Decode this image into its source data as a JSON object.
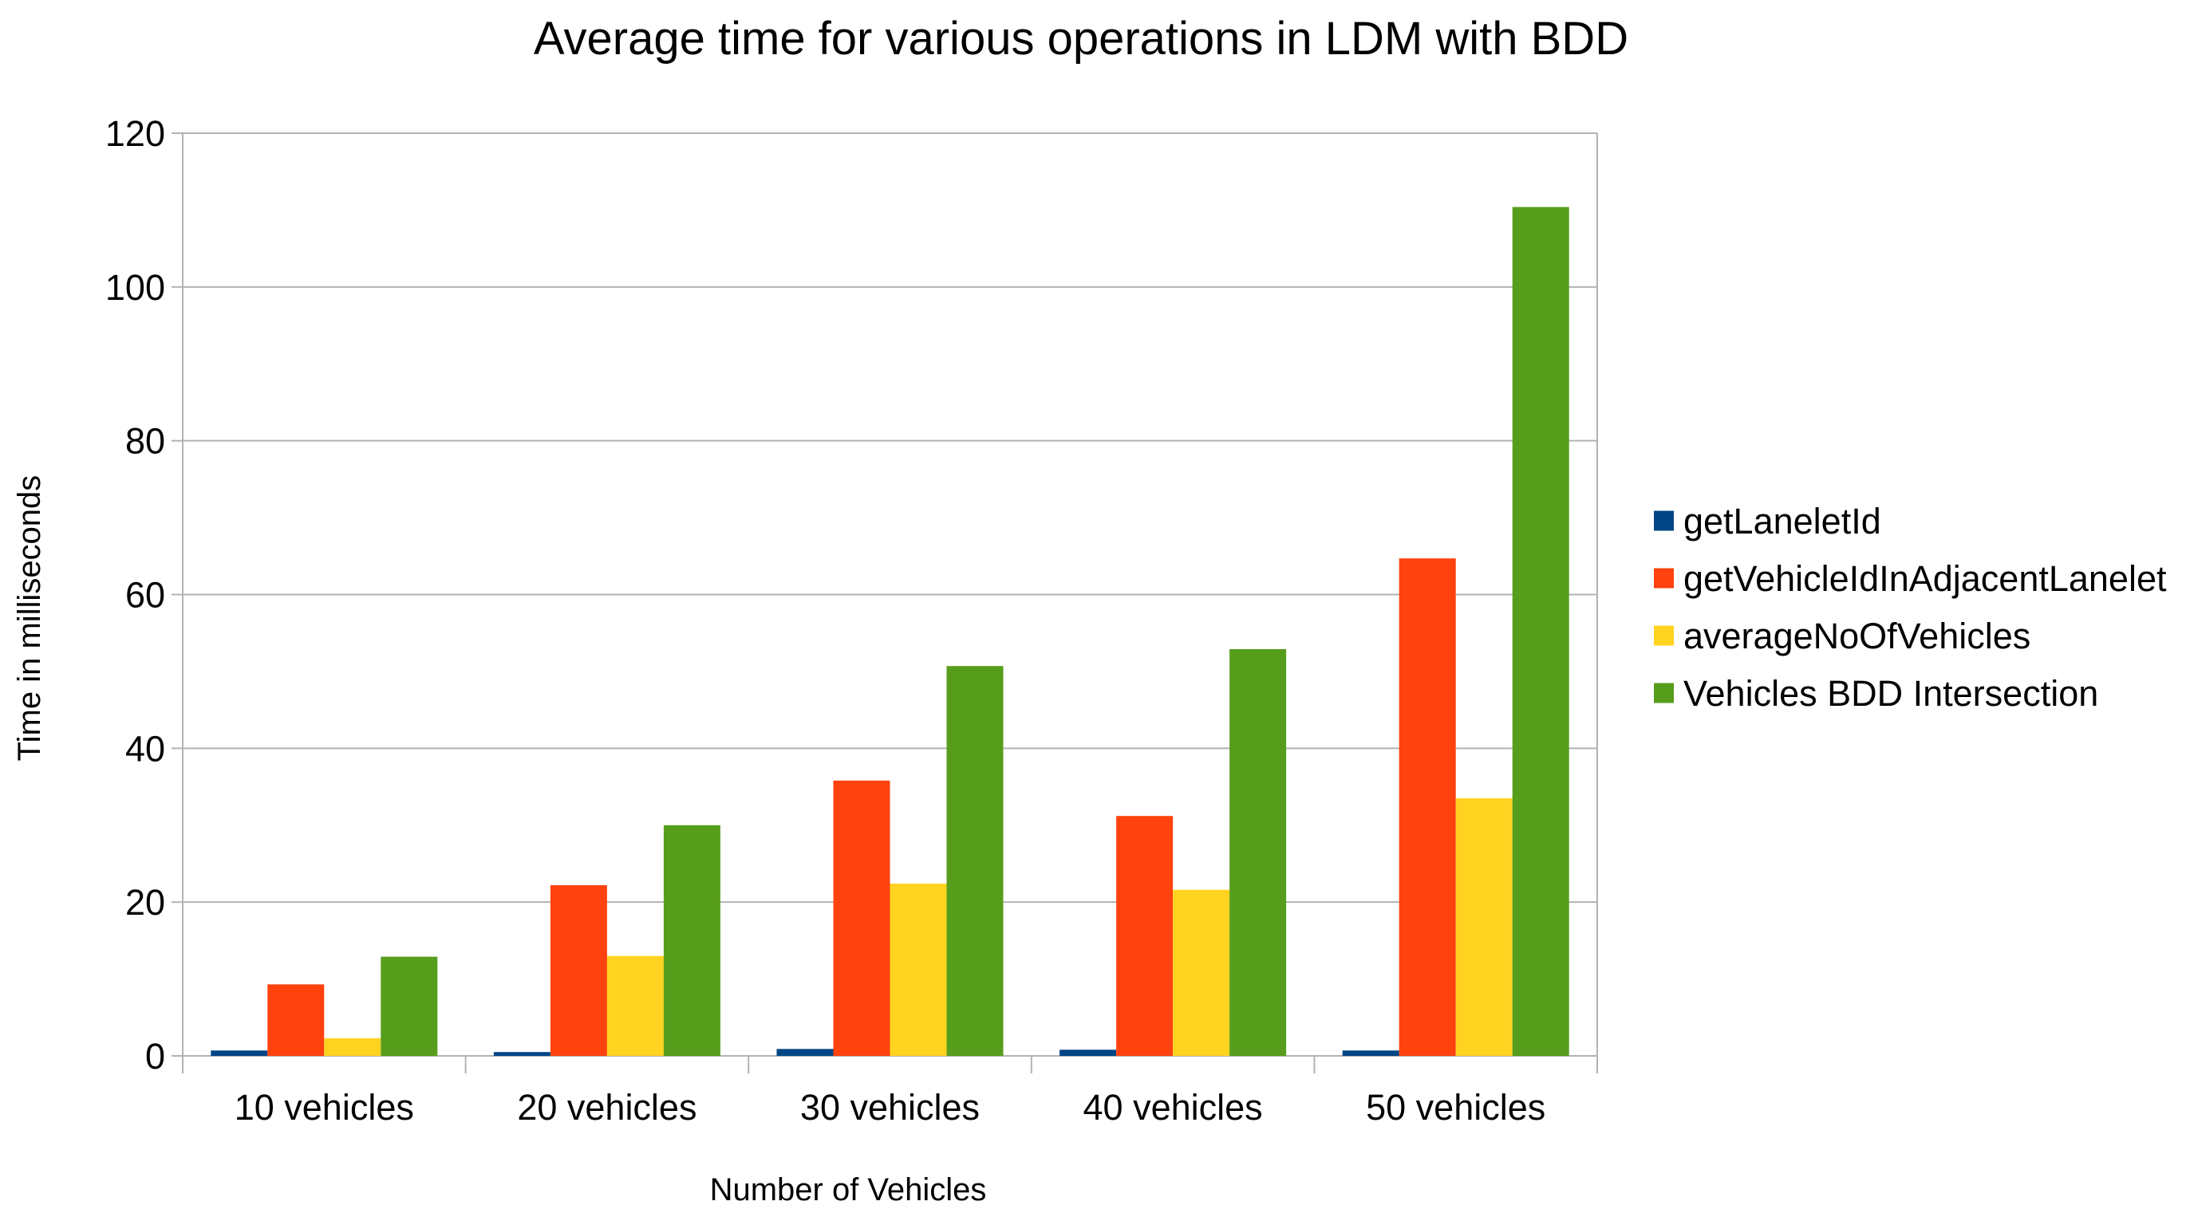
{
  "chart_data": {
    "type": "bar",
    "title": "Average time for various operations in LDM with BDD",
    "xlabel": "Number of Vehicles",
    "ylabel": "Time in milliseconds",
    "ylim": [
      0,
      120
    ],
    "yticks": [
      0,
      20,
      40,
      60,
      80,
      100,
      120
    ],
    "grid": true,
    "legend_position": "right",
    "categories": [
      "10 vehicles",
      "20 vehicles",
      "30 vehicles",
      "40 vehicles",
      "50 vehicles"
    ],
    "series": [
      {
        "name": "getLaneletId",
        "color": "#004586",
        "values": [
          0.7,
          0.5,
          0.9,
          0.8,
          0.7
        ]
      },
      {
        "name": "getVehicleIdInAdjacentLanelet",
        "color": "#ff420e",
        "values": [
          9.3,
          22.2,
          35.8,
          31.2,
          64.7
        ]
      },
      {
        "name": "averageNoOfVehicles",
        "color": "#ffd320",
        "values": [
          2.3,
          13.0,
          22.4,
          21.6,
          33.5
        ]
      },
      {
        "name": "Vehicles BDD Intersection",
        "color": "#579d1c",
        "values": [
          12.9,
          30.0,
          50.7,
          52.9,
          110.4
        ]
      }
    ]
  }
}
